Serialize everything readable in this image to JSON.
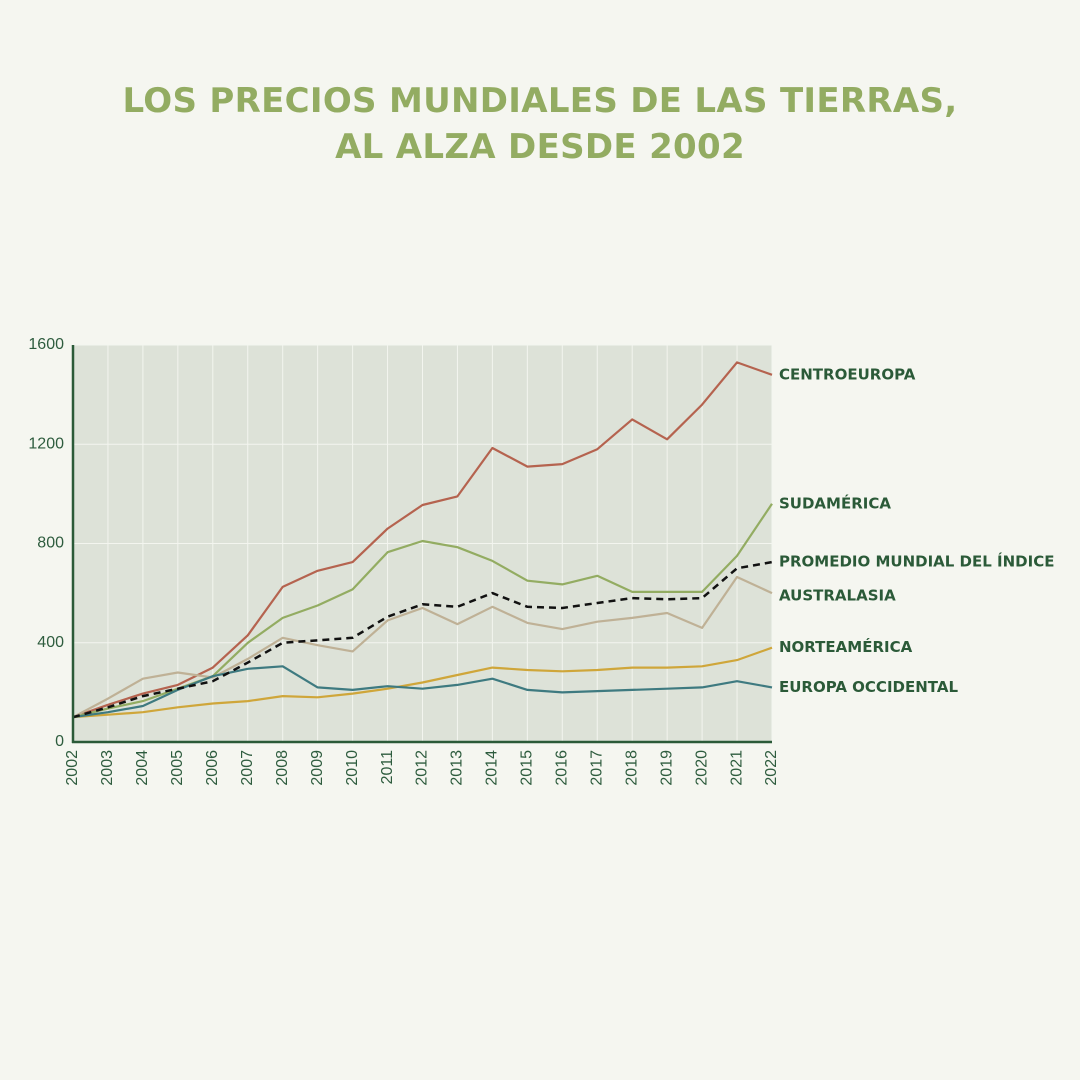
{
  "chart_data": {
    "type": "line",
    "title_lines": [
      "LOS PRECIOS MUNDIALES DE LAS TIERRAS,",
      "AL ALZA DESDE 2002"
    ],
    "x": [
      "2002",
      "2003",
      "2004",
      "2005",
      "2006",
      "2007",
      "2008",
      "2009",
      "2010",
      "2011",
      "2012",
      "2013",
      "2014",
      "2015",
      "2016",
      "2017",
      "2018",
      "2019",
      "2020",
      "2021",
      "2022"
    ],
    "ylim": [
      0,
      1600
    ],
    "yticks": [
      "0",
      "400",
      "800",
      "1200",
      "1600"
    ],
    "grid": true,
    "series": [
      {
        "name": "CENTROEUROPA",
        "color": "#b5634f",
        "dashed": false,
        "values": [
          100,
          150,
          195,
          230,
          300,
          430,
          625,
          690,
          725,
          860,
          955,
          990,
          1185,
          1110,
          1120,
          1180,
          1300,
          1220,
          1360,
          1530,
          1480
        ]
      },
      {
        "name": "SUDAMÉRICA",
        "color": "#93ac62",
        "dashed": false,
        "values": [
          100,
          135,
          165,
          215,
          265,
          400,
          500,
          550,
          615,
          765,
          810,
          785,
          730,
          650,
          635,
          670,
          605,
          605,
          605,
          750,
          960
        ]
      },
      {
        "name": "PROMEDIO MUNDIAL DEL ÍNDICE",
        "color": "#111111",
        "dashed": true,
        "values": [
          100,
          140,
          185,
          215,
          245,
          320,
          400,
          410,
          420,
          505,
          555,
          545,
          600,
          545,
          540,
          560,
          580,
          575,
          580,
          700,
          725
        ]
      },
      {
        "name": "AUSTRALASIA",
        "color": "#bfb196",
        "dashed": false,
        "values": [
          100,
          175,
          255,
          280,
          260,
          335,
          420,
          390,
          365,
          490,
          540,
          475,
          545,
          480,
          455,
          485,
          500,
          520,
          460,
          665,
          600
        ]
      },
      {
        "name": "NORTEAMÉRICA",
        "color": "#cfa63a",
        "dashed": false,
        "values": [
          100,
          110,
          120,
          140,
          155,
          165,
          185,
          180,
          195,
          215,
          240,
          270,
          300,
          290,
          285,
          290,
          300,
          300,
          305,
          330,
          380
        ]
      },
      {
        "name": "EUROPA OCCIDENTAL",
        "color": "#3e7a80",
        "dashed": false,
        "values": [
          100,
          120,
          145,
          210,
          265,
          295,
          305,
          220,
          210,
          225,
          215,
          230,
          255,
          210,
          200,
          205,
          210,
          215,
          220,
          245,
          220
        ]
      }
    ]
  }
}
